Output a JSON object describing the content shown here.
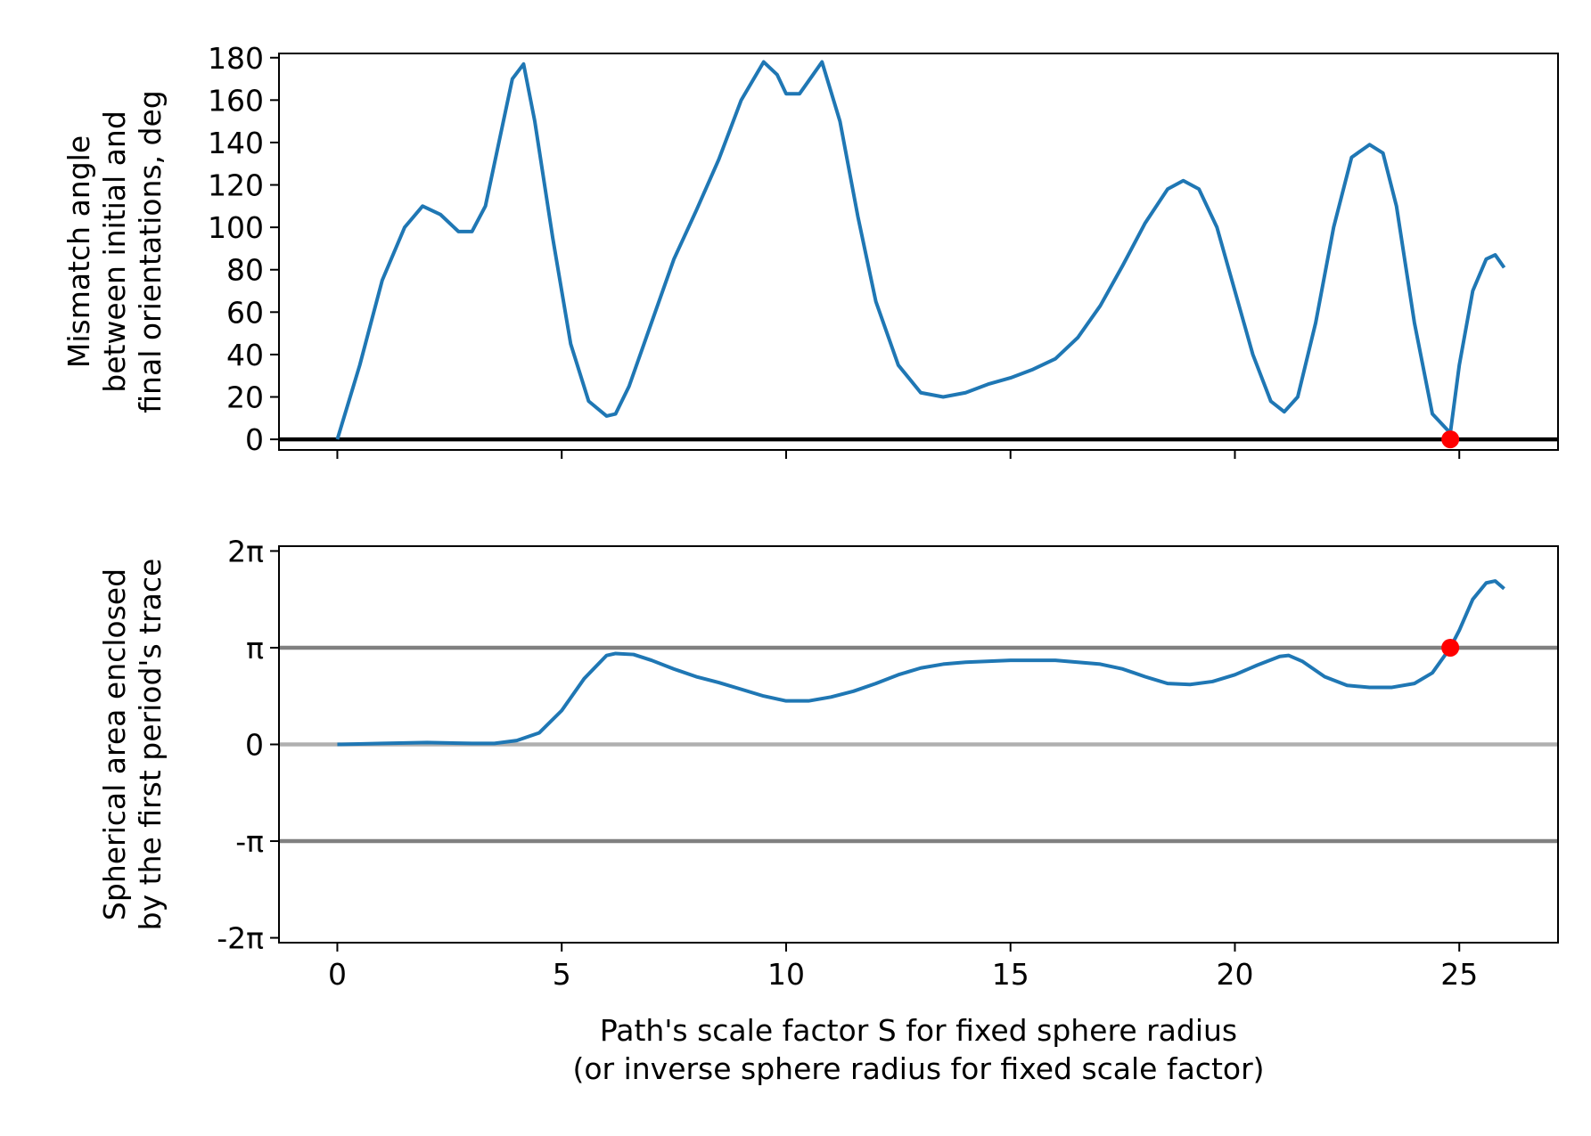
{
  "chart_data": [
    {
      "type": "line",
      "title": "",
      "xlabel": "",
      "ylabel_lines": [
        "Mismatch angle",
        "between initial and",
        "final orientations, deg"
      ],
      "xlim": [
        -1.3,
        27.2
      ],
      "ylim": [
        -5,
        182
      ],
      "xticks": [
        0,
        5,
        10,
        15,
        20,
        25
      ],
      "yticks": [
        0,
        20,
        40,
        60,
        80,
        100,
        120,
        140,
        160,
        180
      ],
      "ytick_labels": [
        "0",
        "20",
        "40",
        "60",
        "80",
        "100",
        "120",
        "140",
        "160",
        "180"
      ],
      "series": [
        {
          "color": "#1f77b4",
          "x": [
            0,
            0.5,
            1,
            1.5,
            1.9,
            2.3,
            2.7,
            3.0,
            3.3,
            3.6,
            3.9,
            4.15,
            4.4,
            4.8,
            5.2,
            5.6,
            6.0,
            6.2,
            6.5,
            7.0,
            7.5,
            8.0,
            8.5,
            9.0,
            9.5,
            9.8,
            10.0,
            10.3,
            10.6,
            10.8,
            11.2,
            11.6,
            12.0,
            12.5,
            13.0,
            13.5,
            14.0,
            14.5,
            15.0,
            15.5,
            16.0,
            16.5,
            17.0,
            17.5,
            18.0,
            18.5,
            18.85,
            19.2,
            19.6,
            20.0,
            20.4,
            20.8,
            21.1,
            21.4,
            21.8,
            22.2,
            22.6,
            23.0,
            23.3,
            23.6,
            24.0,
            24.4,
            24.8,
            25.0,
            25.3,
            25.6,
            25.8,
            26.0
          ],
          "y": [
            0,
            35,
            75,
            100,
            110,
            106,
            98,
            98,
            110,
            140,
            170,
            177,
            150,
            95,
            45,
            18,
            11,
            12,
            25,
            55,
            85,
            108,
            132,
            160,
            178,
            172,
            163,
            163,
            172,
            178,
            150,
            105,
            65,
            35,
            22,
            20,
            22,
            26,
            29,
            33,
            38,
            48,
            63,
            82,
            102,
            118,
            122,
            118,
            100,
            70,
            40,
            18,
            13,
            20,
            55,
            100,
            133,
            139,
            135,
            110,
            55,
            12,
            3,
            35,
            70,
            85,
            87,
            81
          ]
        }
      ],
      "reference_lines": [
        {
          "y": 0,
          "color": "#000000"
        }
      ],
      "markers": [
        {
          "x": 24.8,
          "y": 0,
          "color": "#ff0000"
        }
      ]
    },
    {
      "type": "line",
      "title": "",
      "xlabel_lines": [
        "Path's scale factor S for fixed sphere radius",
        "(or inverse sphere radius for fixed scale factor)"
      ],
      "ylabel_lines": [
        "Spherical area enclosed",
        "by the first period's trace"
      ],
      "xlim": [
        -1.3,
        27.2
      ],
      "ylim_over_pi": [
        -2.05,
        2.05
      ],
      "xticks": [
        0,
        5,
        10,
        15,
        20,
        25
      ],
      "xtick_labels": [
        "0",
        "5",
        "10",
        "15",
        "20",
        "25"
      ],
      "yticks_over_pi": [
        -2,
        -1,
        0,
        1,
        2
      ],
      "ytick_labels": [
        "-2π",
        "-π",
        "0",
        "π",
        "2π"
      ],
      "series": [
        {
          "color": "#1f77b4",
          "x": [
            0,
            1,
            2,
            3,
            3.5,
            4.0,
            4.5,
            5.0,
            5.5,
            6.0,
            6.2,
            6.6,
            7.0,
            7.5,
            8.0,
            8.5,
            9.0,
            9.5,
            10.0,
            10.5,
            11.0,
            11.5,
            12.0,
            12.5,
            13.0,
            13.5,
            14.0,
            15.0,
            16.0,
            17.0,
            17.5,
            18.0,
            18.5,
            19.0,
            19.5,
            20.0,
            20.5,
            21.0,
            21.2,
            21.5,
            22.0,
            22.5,
            23.0,
            23.5,
            24.0,
            24.4,
            24.8,
            25.0,
            25.3,
            25.6,
            25.8,
            26.0
          ],
          "y_over_pi": [
            0,
            0.01,
            0.02,
            0.01,
            0.01,
            0.04,
            0.12,
            0.35,
            0.68,
            0.92,
            0.94,
            0.93,
            0.87,
            0.78,
            0.7,
            0.64,
            0.57,
            0.5,
            0.45,
            0.45,
            0.49,
            0.55,
            0.63,
            0.72,
            0.79,
            0.83,
            0.85,
            0.87,
            0.87,
            0.83,
            0.78,
            0.7,
            0.63,
            0.62,
            0.65,
            0.72,
            0.82,
            0.91,
            0.92,
            0.86,
            0.7,
            0.61,
            0.59,
            0.59,
            0.63,
            0.74,
            1.0,
            1.18,
            1.5,
            1.67,
            1.69,
            1.61
          ]
        }
      ],
      "reference_lines": [
        {
          "y_over_pi": 1,
          "color": "#808080"
        },
        {
          "y_over_pi": 0,
          "color": "#b0b0b0"
        },
        {
          "y_over_pi": -1,
          "color": "#808080"
        }
      ],
      "markers": [
        {
          "x": 24.8,
          "y_over_pi": 1,
          "color": "#ff0000"
        }
      ]
    }
  ]
}
